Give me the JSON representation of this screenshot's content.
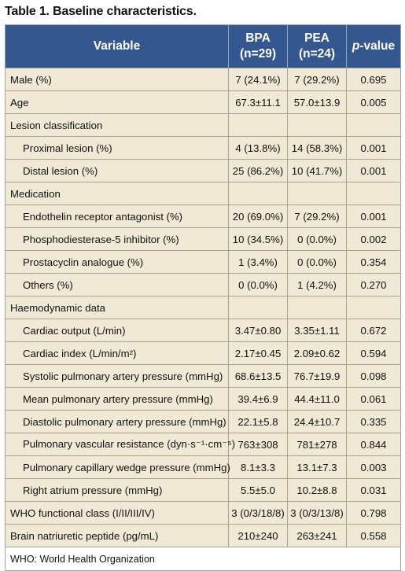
{
  "caption": "Table 1. Baseline characteristics.",
  "headers": {
    "variable": "Variable",
    "bpa": "BPA",
    "bpa_n": "(n=29)",
    "pea": "PEA",
    "pea_n": "(n=24)",
    "pvalue_prefix": "p",
    "pvalue_suffix": "-value"
  },
  "rows": [
    {
      "label": "Male (%)",
      "bpa": "7 (24.1%)",
      "pea": "7 (29.2%)",
      "p": "0.695"
    },
    {
      "label": "Age",
      "bpa": "67.3±11.1",
      "pea": "57.0±13.9",
      "p": "0.005"
    },
    {
      "label": "Lesion classification",
      "bpa": "",
      "pea": "",
      "p": ""
    },
    {
      "label": "Proximal lesion (%)",
      "bpa": "4 (13.8%)",
      "pea": "14 (58.3%)",
      "p": "0.001"
    },
    {
      "label": "Distal lesion (%)",
      "bpa": "25 (86.2%)",
      "pea": "10 (41.7%)",
      "p": "0.001"
    },
    {
      "label": "Medication",
      "bpa": "",
      "pea": "",
      "p": ""
    },
    {
      "label": "Endothelin receptor antagonist (%)",
      "bpa": "20 (69.0%)",
      "pea": "7 (29.2%)",
      "p": "0.001"
    },
    {
      "label": "Phosphodiesterase-5 inhibitor (%)",
      "bpa": "10 (34.5%)",
      "pea": "0 (0.0%)",
      "p": "0.002"
    },
    {
      "label": "Prostacyclin analogue (%)",
      "bpa": "1 (3.4%)",
      "pea": "0 (0.0%)",
      "p": "0.354"
    },
    {
      "label": "Others (%)",
      "bpa": "0 (0.0%)",
      "pea": "1 (4.2%)",
      "p": "0.270"
    },
    {
      "label": "Haemodynamic data",
      "bpa": "",
      "pea": "",
      "p": ""
    },
    {
      "label": "Cardiac output (L/min)",
      "bpa": "3.47±0.80",
      "pea": "3.35±1.11",
      "p": "0.672"
    },
    {
      "label": "Cardiac index (L/min/m²)",
      "bpa": "2.17±0.45",
      "pea": "2.09±0.62",
      "p": "0.594"
    },
    {
      "label": "Systolic pulmonary artery pressure (mmHg)",
      "bpa": "68.6±13.5",
      "pea": "76.7±19.9",
      "p": "0.098"
    },
    {
      "label": "Mean pulmonary artery pressure (mmHg)",
      "bpa": "39.4±6.9",
      "pea": "44.4±11.0",
      "p": "0.061"
    },
    {
      "label": "Diastolic pulmonary artery pressure (mmHg)",
      "bpa": "22.1±5.8",
      "pea": "24.4±10.7",
      "p": "0.335"
    },
    {
      "label": "Pulmonary vascular resistance (dyn·s⁻¹·cm⁻⁵)",
      "bpa": "763±308",
      "pea": "781±278",
      "p": "0.844"
    },
    {
      "label": "Pulmonary capillary wedge pressure (mmHg)",
      "bpa": "8.1±3.3",
      "pea": "13.1±7.3",
      "p": "0.003"
    },
    {
      "label": "Right atrium pressure (mmHg)",
      "bpa": "5.5±5.0",
      "pea": "10.2±8.8",
      "p": "0.031"
    },
    {
      "label": "WHO functional class (I/II/III/IV)",
      "bpa": "3 (0/3/18/8)",
      "pea": "3 (0/3/13/8)",
      "p": "0.798"
    },
    {
      "label": "Brain natriuretic peptide (pg/mL)",
      "bpa": "210±240",
      "pea": "263±241",
      "p": "0.558"
    }
  ],
  "footnote": "WHO: World Health Organization"
}
